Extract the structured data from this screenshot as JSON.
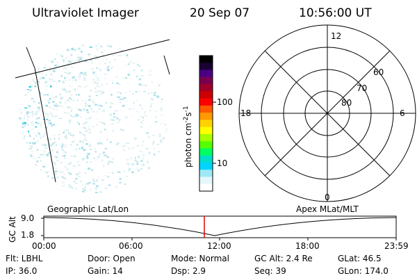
{
  "header": {
    "title": "Ultraviolet Imager",
    "date": "20 Sep 07",
    "time": "10:56:00 UT"
  },
  "colorbar": {
    "label_main": "photon cm",
    "label_exp1": "-2",
    "label_mid": "s",
    "label_exp2": "-1",
    "tick_100": "100",
    "tick_10": "10",
    "colors": [
      "#000000",
      "#1a0033",
      "#4b0082",
      "#7a004f",
      "#a0002a",
      "#cc0000",
      "#ff0000",
      "#ff5a00",
      "#ff9a00",
      "#ffd200",
      "#ffff00",
      "#a8ff00",
      "#55ff00",
      "#00ff60",
      "#00e0c8",
      "#00d4ff",
      "#9fe8f5",
      "#e6f7fb",
      "#ffffff"
    ]
  },
  "polar_plot": {
    "label_12": "12",
    "label_6": "6",
    "label_18": "18",
    "label_0": "0",
    "lat_60": "60",
    "lat_70": "70",
    "lat_80": "80"
  },
  "timeline": {
    "left_label": "Geographic Lat/Lon",
    "right_label": "Apex  MLat/MLT",
    "axis_title": "GC Alt",
    "y_top": "9.0",
    "y_bottom": "1.8",
    "ticks": [
      "00:00",
      "06:00",
      "12:00",
      "18:00",
      "23:59"
    ],
    "current_time_fraction": 0.4556
  },
  "footer": {
    "flt": "Flt: LBHL",
    "door": "Door: Open",
    "mode": "Mode: Normal",
    "gc_alt": "GC Alt: 2.4 Re",
    "glat": "GLat:  46.5",
    "ip": "IP: 36.0",
    "gain": "Gain: 14",
    "dsp": "Dsp:    2.9",
    "seq": "Seq: 39",
    "glon": "GLon: 174.0"
  }
}
